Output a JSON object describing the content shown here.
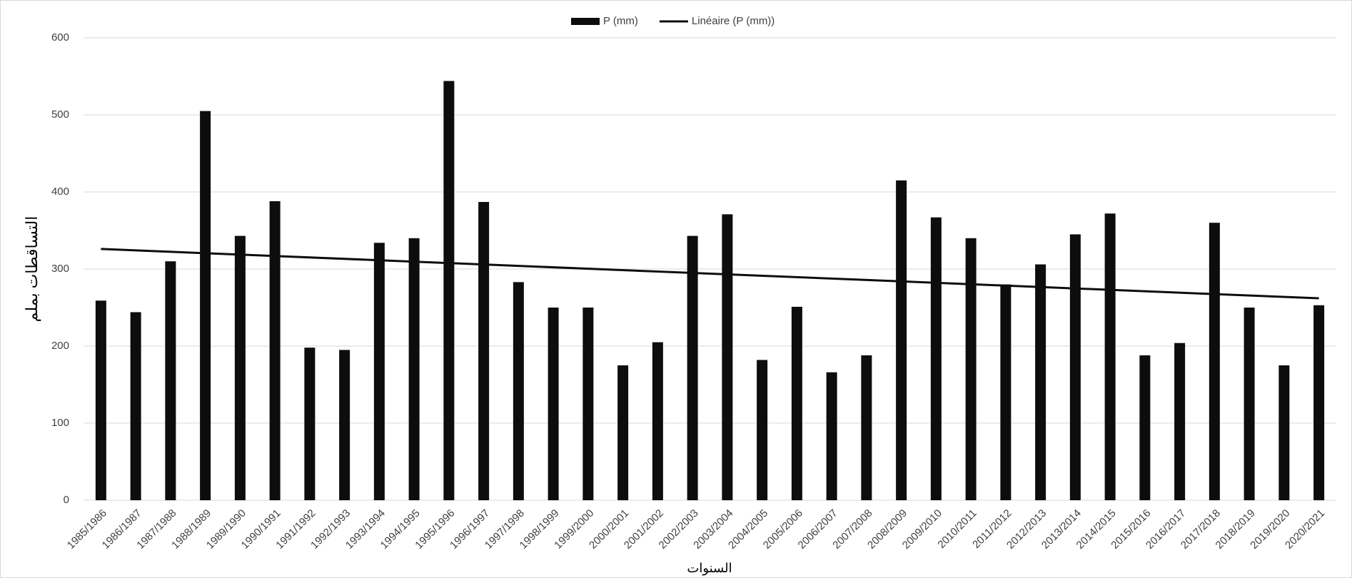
{
  "chart_data": {
    "type": "bar",
    "x_label": "السنوات",
    "y_label": "التساقطات بملم",
    "categories": [
      "1985/1986",
      "1986/1987",
      "1987/1988",
      "1988/1989",
      "1989/1990",
      "1990/1991",
      "1991/1992",
      "1992/1993",
      "1993/1994",
      "1994/1995",
      "1995/1996",
      "1996/1997",
      "1997/1998",
      "1998/1999",
      "1999/2000",
      "2000/2001",
      "2001/2002",
      "2002/2003",
      "2003/2004",
      "2004/2005",
      "2005/2006",
      "2006/2007",
      "2007/2008",
      "2008/2009",
      "2009/2010",
      "2010/2011",
      "2011/2012",
      "2012/2013",
      "2013/2014",
      "2014/2015",
      "2015/2016",
      "2016/2017",
      "2017/2018",
      "2018/2019",
      "2019/2020",
      "2020/2021"
    ],
    "series": [
      {
        "name": "P (mm)",
        "color": "#0d0d0d",
        "values": [
          259,
          244,
          310,
          505,
          343,
          388,
          198,
          195,
          334,
          340,
          544,
          387,
          283,
          250,
          250,
          175,
          205,
          343,
          371,
          182,
          251,
          166,
          188,
          415,
          367,
          340,
          280,
          306,
          345,
          372,
          188,
          204,
          360,
          250,
          175,
          253
        ]
      }
    ],
    "trendline": {
      "name": "Linéaire (P (mm))",
      "color": "#0d0d0d",
      "start": 326,
      "end": 262
    },
    "ylim": [
      0,
      600
    ],
    "yticks": [
      0,
      100,
      200,
      300,
      400,
      500,
      600
    ],
    "grid": true,
    "legend": "top"
  }
}
